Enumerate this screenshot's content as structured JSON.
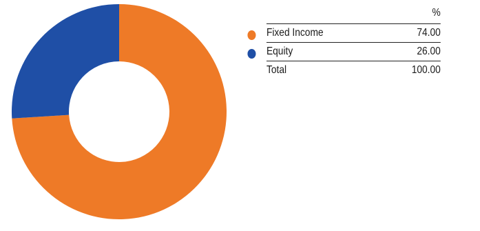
{
  "chart_data": {
    "type": "pie",
    "donut": true,
    "categories": [
      "Fixed Income",
      "Equity"
    ],
    "values": [
      74.0,
      26.0
    ],
    "colors": [
      "#ee7a27",
      "#1f4fa6"
    ],
    "total": 100.0
  },
  "legend": {
    "unit_header": "%",
    "rows": [
      {
        "label": "Fixed Income",
        "value": "74.00",
        "color": "#ee7a27"
      },
      {
        "label": "Equity",
        "value": "26.00",
        "color": "#1f4fa6"
      },
      {
        "label": "Total",
        "value": "100.00",
        "color": ""
      }
    ]
  }
}
